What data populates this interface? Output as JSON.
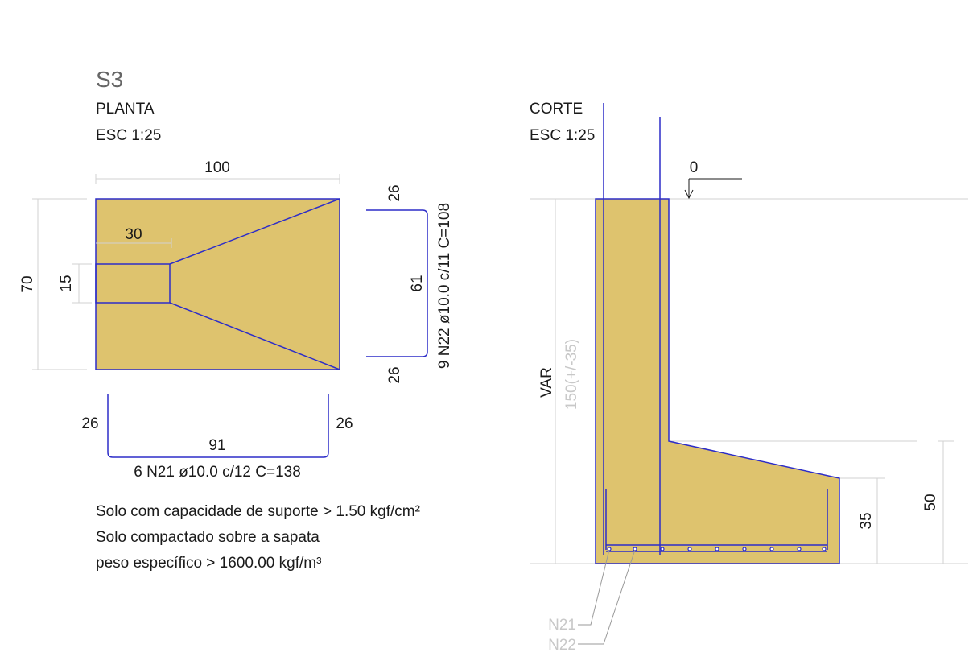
{
  "sheet": {
    "footing_id": "S3",
    "plan": {
      "title": "PLANTA",
      "scale": "ESC 1:25"
    },
    "section": {
      "title": "CORTE",
      "scale": "ESC 1:25"
    }
  },
  "plan_dimensions": {
    "width": "100",
    "height": "70",
    "pedestal_width": "30",
    "pedestal_depth": "15"
  },
  "rebar_n22": {
    "hook_top": "26",
    "straight": "61",
    "hook_bottom": "26",
    "spec": "9 N22 ø10.0 c/11 C=108"
  },
  "rebar_n21": {
    "hook_left": "26",
    "straight": "91",
    "hook_right": "26",
    "spec": "6 N21 ø10.0 c/12 C=138"
  },
  "notes": [
    "Solo com capacidade de suporte > 1.50 kgf/cm²",
    "Solo compactado sobre a sapata",
    "peso específico > 1600.00 kgf/m³"
  ],
  "section_dimensions": {
    "level": "0",
    "var_label": "VAR",
    "depth": "150(+/-35)",
    "edge_height": "35",
    "total_height": "50"
  },
  "bar_callouts": [
    "N21",
    "N22"
  ],
  "colors": {
    "concrete": "#dec36e",
    "outline": "#2d2dc8",
    "dimension_line": "#d2d2d2",
    "secondary_text": "#c8c8c8"
  }
}
